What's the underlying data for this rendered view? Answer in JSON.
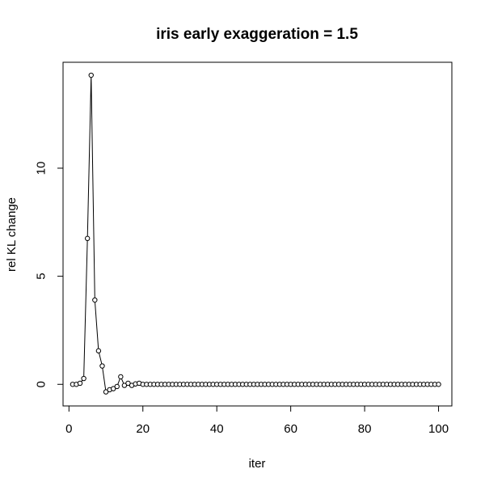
{
  "chart_data": {
    "type": "line",
    "title": "iris early exaggeration = 1.5",
    "xlabel": "iter",
    "ylabel": "rel KL change",
    "xlim": [
      -1.6,
      103.6
    ],
    "ylim": [
      -1.0,
      14.9
    ],
    "x_ticks": [
      0,
      20,
      40,
      60,
      80,
      100
    ],
    "y_ticks": [
      0,
      5,
      10
    ],
    "markers": "open-circle",
    "series": [
      {
        "name": "rel KL change",
        "x": [
          1,
          2,
          3,
          4,
          5,
          6,
          7,
          8,
          9,
          10,
          11,
          12,
          13,
          14,
          15,
          16,
          17,
          18,
          19,
          20,
          21,
          22,
          23,
          24,
          25,
          26,
          27,
          28,
          29,
          30,
          31,
          32,
          33,
          34,
          35,
          36,
          37,
          38,
          39,
          40,
          41,
          42,
          43,
          44,
          45,
          46,
          47,
          48,
          49,
          50,
          51,
          52,
          53,
          54,
          55,
          56,
          57,
          58,
          59,
          60,
          61,
          62,
          63,
          64,
          65,
          66,
          67,
          68,
          69,
          70,
          71,
          72,
          73,
          74,
          75,
          76,
          77,
          78,
          79,
          80,
          81,
          82,
          83,
          84,
          85,
          86,
          87,
          88,
          89,
          90,
          91,
          92,
          93,
          94,
          95,
          96,
          97,
          98,
          99,
          100
        ],
        "values": [
          0.0,
          0.0,
          0.05,
          0.27,
          6.75,
          14.3,
          3.9,
          1.55,
          0.85,
          -0.35,
          -0.25,
          -0.2,
          -0.1,
          0.35,
          -0.05,
          0.05,
          -0.05,
          0.02,
          0.05,
          0.0,
          0.0,
          0.0,
          0.0,
          0.0,
          0.0,
          0.0,
          0.0,
          0.0,
          0.0,
          0.0,
          0.0,
          0.0,
          0.0,
          0.0,
          0.0,
          0.0,
          0.0,
          0.0,
          0.0,
          0.0,
          0.0,
          0.0,
          0.0,
          0.0,
          0.0,
          0.0,
          0.0,
          0.0,
          0.0,
          0.0,
          0.0,
          0.0,
          0.0,
          0.0,
          0.0,
          0.0,
          0.0,
          0.0,
          0.0,
          0.0,
          0.0,
          0.0,
          0.0,
          0.0,
          0.0,
          0.0,
          0.0,
          0.0,
          0.0,
          0.0,
          0.0,
          0.0,
          0.0,
          0.0,
          0.0,
          0.0,
          0.0,
          0.0,
          0.0,
          0.0,
          0.0,
          0.0,
          0.0,
          0.0,
          0.0,
          0.0,
          0.0,
          0.0,
          0.0,
          0.0,
          0.0,
          0.0,
          0.0,
          0.0,
          0.0,
          0.0,
          0.0,
          0.0,
          0.0,
          0.0
        ]
      }
    ]
  }
}
